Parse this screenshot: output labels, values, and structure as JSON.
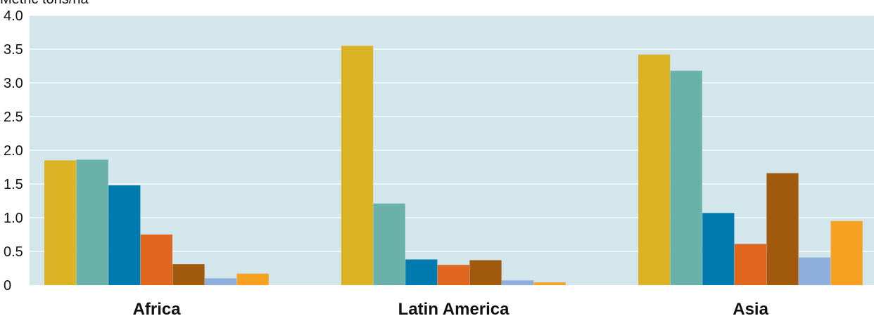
{
  "chart_data": {
    "type": "bar",
    "title": "",
    "ylabel": "Metric tons/ha",
    "xlabel": "",
    "ylim": [
      0,
      4.0
    ],
    "yticks": [
      "0",
      "0.5",
      "1.0",
      "1.5",
      "2.0",
      "2.5",
      "3.0",
      "3.5",
      "4.0"
    ],
    "grid": true,
    "categories": [
      "Africa",
      "Latin America",
      "Asia"
    ],
    "series": [
      {
        "color": "#dcb324",
        "values": [
          1.85,
          3.55,
          3.42
        ]
      },
      {
        "color": "#6ab1a9",
        "values": [
          1.86,
          1.21,
          3.18
        ]
      },
      {
        "color": "#007aaf",
        "values": [
          1.48,
          0.38,
          1.07
        ]
      },
      {
        "color": "#e0661f",
        "values": [
          0.75,
          0.3,
          0.61
        ]
      },
      {
        "color": "#a0590d",
        "values": [
          0.31,
          0.37,
          1.66
        ]
      },
      {
        "color": "#8eafdb",
        "values": [
          0.1,
          0.07,
          0.41
        ]
      },
      {
        "color": "#f5a020",
        "values": [
          0.17,
          0.04,
          0.95
        ]
      }
    ],
    "plot_background": "#d3e6ec"
  }
}
